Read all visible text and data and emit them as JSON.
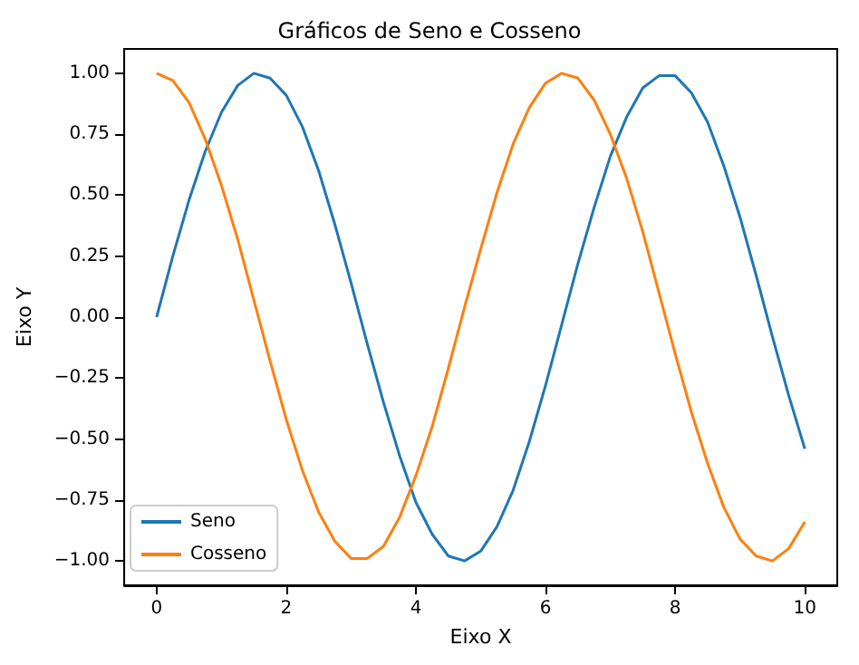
{
  "chart_data": {
    "type": "line",
    "title": "Gráficos de Seno e Cosseno",
    "xlabel": "Eixo X",
    "ylabel": "Eixo Y",
    "x": [
      0,
      0.25,
      0.5,
      0.75,
      1,
      1.25,
      1.5,
      1.75,
      2,
      2.25,
      2.5,
      2.75,
      3,
      3.25,
      3.5,
      3.75,
      4,
      4.25,
      4.5,
      4.75,
      5,
      5.25,
      5.5,
      5.75,
      6,
      6.25,
      6.5,
      6.75,
      7,
      7.25,
      7.5,
      7.75,
      8,
      8.25,
      8.5,
      8.75,
      9,
      9.25,
      9.5,
      9.75,
      10
    ],
    "series": [
      {
        "name": "Seno",
        "color": "#1f77b4",
        "values": [
          0,
          0.25,
          0.48,
          0.68,
          0.84,
          0.95,
          1.0,
          0.98,
          0.91,
          0.78,
          0.6,
          0.38,
          0.14,
          -0.11,
          -0.35,
          -0.57,
          -0.76,
          -0.89,
          -0.98,
          -1.0,
          -0.96,
          -0.86,
          -0.71,
          -0.51,
          -0.28,
          -0.03,
          0.22,
          0.45,
          0.66,
          0.82,
          0.94,
          0.99,
          0.99,
          0.92,
          0.8,
          0.62,
          0.41,
          0.17,
          -0.08,
          -0.32,
          -0.54
        ]
      },
      {
        "name": "Cosseno",
        "color": "#ff7f0e",
        "values": [
          1,
          0.97,
          0.88,
          0.73,
          0.54,
          0.32,
          0.07,
          -0.18,
          -0.42,
          -0.63,
          -0.8,
          -0.92,
          -0.99,
          -0.99,
          -0.94,
          -0.82,
          -0.65,
          -0.45,
          -0.21,
          0.04,
          0.28,
          0.51,
          0.71,
          0.86,
          0.96,
          1.0,
          0.98,
          0.89,
          0.75,
          0.57,
          0.35,
          0.1,
          -0.15,
          -0.39,
          -0.6,
          -0.78,
          -0.91,
          -0.98,
          -1.0,
          -0.95,
          -0.84
        ]
      }
    ],
    "xlim": [
      -0.5,
      10.5
    ],
    "xticks": [
      0,
      2,
      4,
      6,
      8,
      10
    ],
    "ylim": [
      -1.1,
      1.1
    ],
    "yticks": [
      {
        "value": -1,
        "label": "−1.00"
      },
      {
        "value": -0.75,
        "label": "−0.75"
      },
      {
        "value": -0.5,
        "label": "−0.50"
      },
      {
        "value": -0.25,
        "label": "−0.25"
      },
      {
        "value": 0,
        "label": "0.00"
      },
      {
        "value": 0.25,
        "label": "0.25"
      },
      {
        "value": 0.5,
        "label": "0.50"
      },
      {
        "value": 0.75,
        "label": "0.75"
      },
      {
        "value": 1,
        "label": "1.00"
      }
    ],
    "legend": "bottom left",
    "grid": false,
    "marker": "none",
    "line_style": "solid"
  }
}
